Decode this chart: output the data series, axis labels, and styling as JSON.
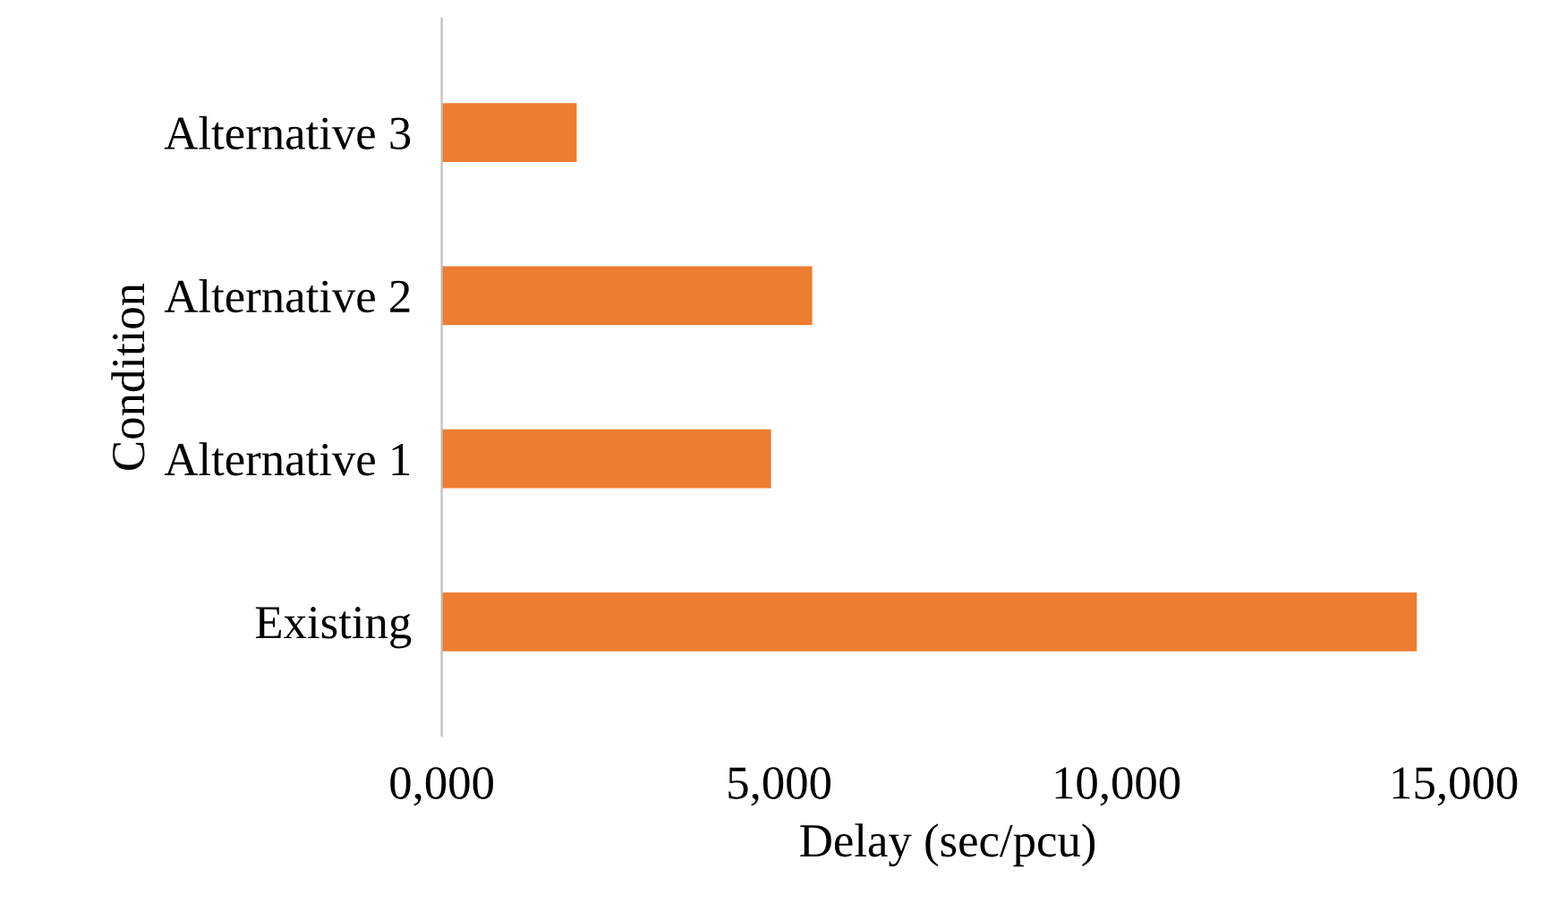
{
  "chart_data": {
    "type": "bar",
    "orientation": "horizontal",
    "xlabel": "Delay (sec/pcu)",
    "ylabel": "Condition",
    "categories": [
      "Alternative 3",
      "Alternative 2",
      "Alternative 1",
      "Existing"
    ],
    "values": [
      2000,
      5490,
      4880,
      14450
    ],
    "color": "#ed7d31",
    "xlim": [
      0,
      15000
    ],
    "xticks": [
      {
        "value": 0,
        "label": "0,000"
      },
      {
        "value": 5000,
        "label": "5,000"
      },
      {
        "value": 10000,
        "label": "10,000"
      },
      {
        "value": 15000,
        "label": "15,000"
      }
    ],
    "grid": false,
    "legend": false
  }
}
